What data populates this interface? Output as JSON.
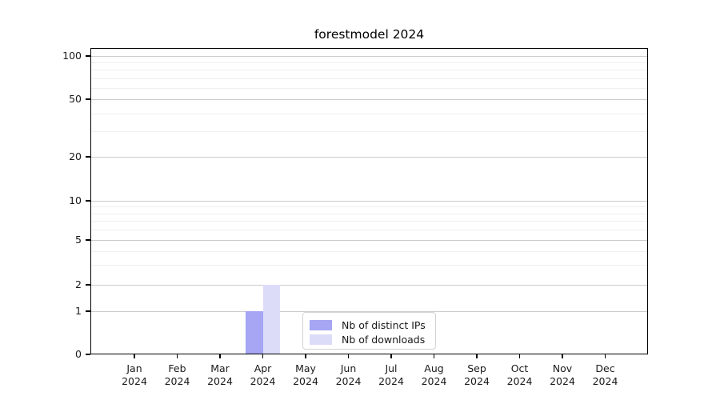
{
  "figure": {
    "title": "forestmodel 2024"
  },
  "chart_data": {
    "type": "bar",
    "title": "forestmodel 2024",
    "xlabel": "",
    "ylabel": "",
    "x": {
      "months": [
        "Jan",
        "Feb",
        "Mar",
        "Apr",
        "May",
        "Jun",
        "Jul",
        "Aug",
        "Sep",
        "Oct",
        "Nov",
        "Dec"
      ],
      "year": "2024"
    },
    "series": [
      {
        "name": "Nb of distinct IPs",
        "color": "#a6a6f4",
        "values": [
          0,
          0,
          0,
          1,
          0,
          0,
          0,
          0,
          0,
          0,
          0,
          0
        ]
      },
      {
        "name": "Nb of downloads",
        "color": "#dcdcf9",
        "values": [
          0,
          0,
          0,
          2,
          0,
          0,
          0,
          0,
          0,
          0,
          0,
          0
        ]
      }
    ],
    "y_axis": {
      "scale": "symlog",
      "major_ticks": [
        0,
        1,
        2,
        5,
        10,
        20,
        50,
        100
      ],
      "minor_ticks": [
        3,
        4,
        6,
        7,
        8,
        9,
        30,
        40,
        60,
        70,
        80,
        90
      ],
      "ylim": [
        0,
        115
      ],
      "grid": "on"
    },
    "legend": {
      "position": "lower-center"
    },
    "colors": {
      "grid_major": "#cccccc",
      "grid_minor": "#efefef",
      "axis": "#000000",
      "text": "#1a1a1a",
      "legend_border": "#d3d3d3",
      "background": "#ffffff"
    }
  }
}
